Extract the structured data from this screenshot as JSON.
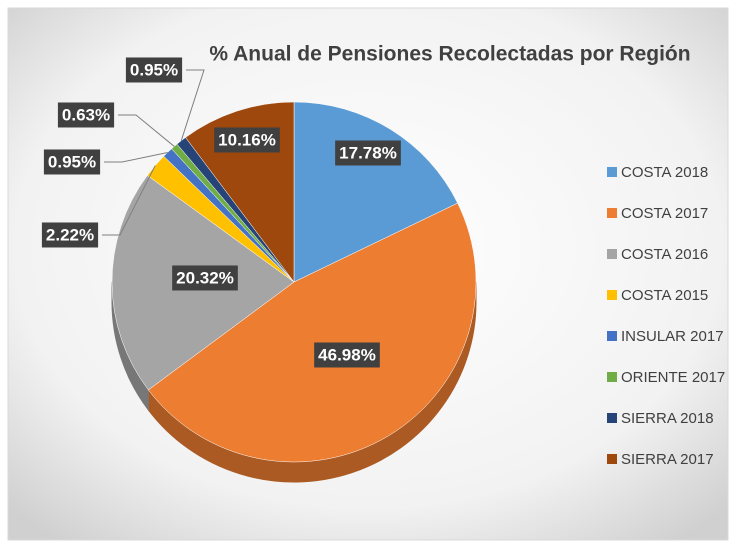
{
  "chart_data": {
    "type": "pie",
    "title": "% Anual de Pensiones Recolectadas por Región",
    "categories": [
      "COSTA 2018",
      "COSTA 2017",
      "COSTA 2016",
      "COSTA 2015",
      "INSULAR 2017",
      "ORIENTE 2017",
      "SIERRA 2018",
      "SIERRA 2017"
    ],
    "values": [
      17.78,
      46.98,
      20.32,
      2.22,
      0.95,
      0.63,
      0.95,
      10.16
    ],
    "value_labels": [
      "17.78%",
      "46.98%",
      "20.32%",
      "2.22%",
      "0.95%",
      "0.63%",
      "0.95%",
      "10.16%"
    ],
    "colors": [
      "#5b9bd5",
      "#ed7d31",
      "#a5a5a5",
      "#ffc000",
      "#4472c4",
      "#70ad47",
      "#264478",
      "#9e480e"
    ],
    "legend": "right"
  }
}
